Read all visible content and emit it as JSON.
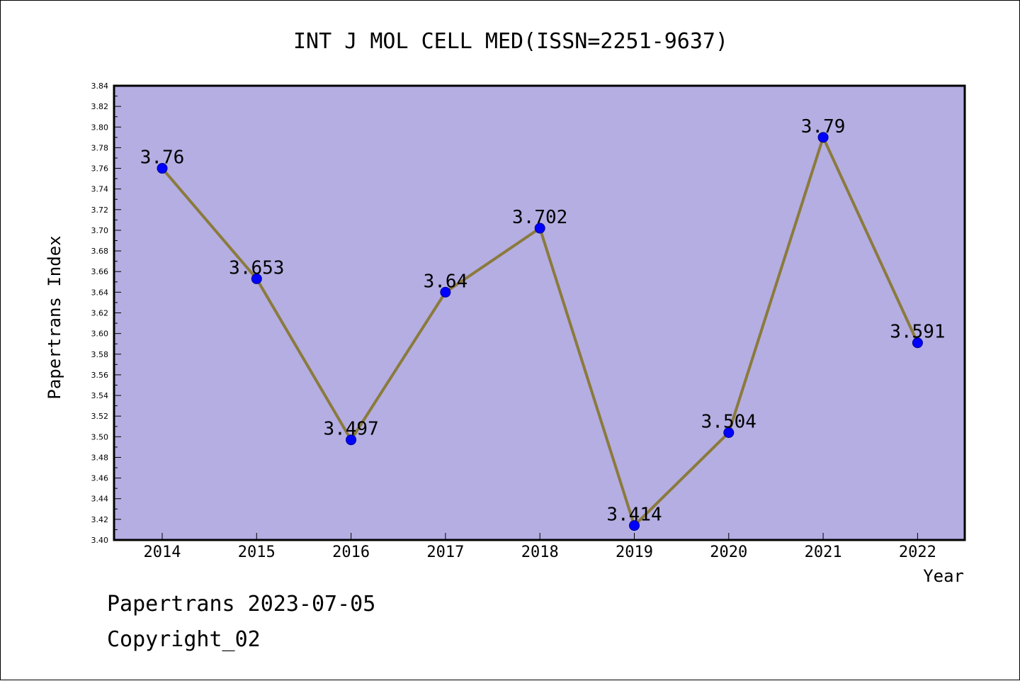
{
  "chart_data": {
    "type": "line",
    "title": "INT J MOL CELL MED(ISSN=2251-9637)",
    "xlabel": "Year",
    "ylabel": "Papertrans Index",
    "categories": [
      "2014",
      "2015",
      "2016",
      "2017",
      "2018",
      "2019",
      "2020",
      "2021",
      "2022"
    ],
    "values": [
      3.76,
      3.653,
      3.497,
      3.64,
      3.702,
      3.414,
      3.504,
      3.79,
      3.591
    ],
    "data_labels": [
      "3.76",
      "3.653",
      "3.497",
      "3.64",
      "3.702",
      "3.414",
      "3.504",
      "3.79",
      "3.591"
    ],
    "ylim": [
      3.4,
      3.84
    ],
    "y_tick_labels": [
      "3.40",
      "3.42",
      "3.44",
      "3.46",
      "3.48",
      "3.50",
      "3.52",
      "3.54",
      "3.56",
      "3.58",
      "3.60",
      "3.62",
      "3.64",
      "3.66",
      "3.68",
      "3.70",
      "3.72",
      "3.74",
      "3.76",
      "3.78",
      "3.80",
      "3.82",
      "3.84"
    ],
    "grid": false,
    "colors": {
      "plot_background": "#b4aee3",
      "line": "#8b7a3c",
      "marker": "#0000ff",
      "axis": "#000000"
    }
  },
  "footer": {
    "line1": "Papertrans 2023-07-05",
    "line2": "Copyright_02"
  }
}
